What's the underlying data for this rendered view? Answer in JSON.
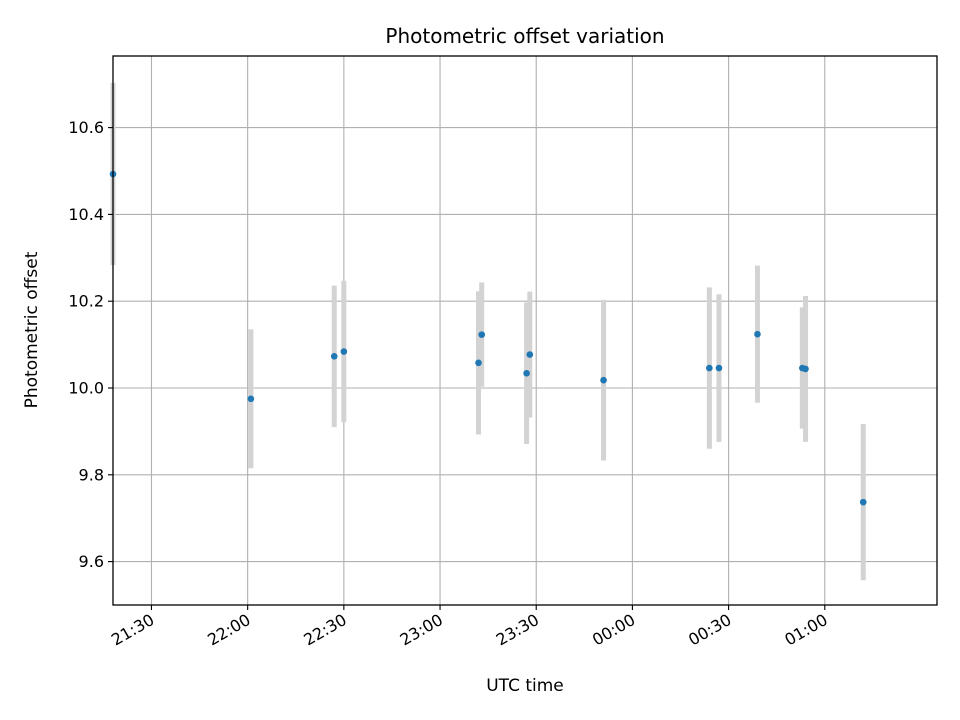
{
  "chart_data": {
    "type": "scatter",
    "title": "Photometric offset variation",
    "xlabel": "UTC time",
    "ylabel": "Photometric offset",
    "grid": true,
    "x_ticks": [
      "21:30",
      "22:00",
      "22:30",
      "23:00",
      "23:30",
      "00:00",
      "00:30",
      "01:00"
    ],
    "x_tick_values": [
      "21:30",
      "22:00",
      "22:30",
      "23:00",
      "23:30",
      "00:00",
      "00:30",
      "01:00"
    ],
    "y_ticks": [
      "9.6",
      "9.8",
      "10.0",
      "10.2",
      "10.4",
      "10.6"
    ],
    "y_tick_values": [
      9.6,
      9.8,
      10.0,
      10.2,
      10.4,
      10.6
    ],
    "xlim": [
      "21:18",
      "01:35"
    ],
    "ylim": [
      9.5,
      10.765
    ],
    "colors": {
      "points": "#1f77b4",
      "errorbars": "#d3d3d3",
      "grid": "#b0b0b0"
    },
    "series": [
      {
        "points": [
          {
            "x": "21:18",
            "y": 10.493,
            "err": 0.21
          },
          {
            "x": "22:01",
            "y": 9.975,
            "err": 0.16
          },
          {
            "x": "22:27",
            "y": 10.073,
            "err": 0.163
          },
          {
            "x": "22:30",
            "y": 10.084,
            "err": 0.163
          },
          {
            "x": "23:12",
            "y": 10.058,
            "err": 0.165
          },
          {
            "x": "23:13",
            "y": 10.123,
            "err": 0.12
          },
          {
            "x": "23:27",
            "y": 10.034,
            "err": 0.163
          },
          {
            "x": "23:28",
            "y": 10.077,
            "err": 0.145
          },
          {
            "x": "23:51",
            "y": 10.018,
            "err": 0.185
          },
          {
            "x": "00:24",
            "y": 10.046,
            "err": 0.186
          },
          {
            "x": "00:27",
            "y": 10.046,
            "err": 0.17
          },
          {
            "x": "00:39",
            "y": 10.124,
            "err": 0.158
          },
          {
            "x": "00:53",
            "y": 10.046,
            "err": 0.14
          },
          {
            "x": "00:54",
            "y": 10.044,
            "err": 0.168
          },
          {
            "x": "01:12",
            "y": 9.737,
            "err": 0.18
          }
        ]
      }
    ]
  }
}
